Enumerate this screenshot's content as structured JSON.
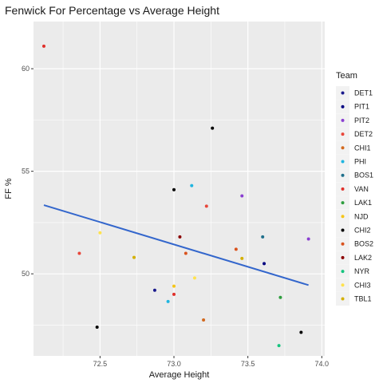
{
  "chart_data": {
    "type": "scatter",
    "title": "Fenwick For Percentage vs Average Height",
    "xlabel": "Average Height",
    "ylabel": "FF %",
    "xlim": [
      72.05,
      74.02
    ],
    "ylim": [
      46.0,
      62.3
    ],
    "x_ticks": [
      72.5,
      73.0,
      73.5,
      74.0
    ],
    "x_tick_labels": [
      "72.5",
      "73.0",
      "73.5",
      "74.0"
    ],
    "y_ticks": [
      50,
      55,
      60
    ],
    "y_tick_labels": [
      "50",
      "55",
      "60"
    ],
    "grid": true,
    "legend": {
      "title": "Team",
      "position": "right",
      "entries": [
        {
          "name": "DET1",
          "color": "#1a1a8c"
        },
        {
          "name": "PIT1",
          "color": "#000080"
        },
        {
          "name": "PIT2",
          "color": "#8a3fd1"
        },
        {
          "name": "DET2",
          "color": "#e8463a"
        },
        {
          "name": "CHI1",
          "color": "#d2691e"
        },
        {
          "name": "PHI",
          "color": "#1fb5e0"
        },
        {
          "name": "BOS1",
          "color": "#1f6f8b"
        },
        {
          "name": "VAN",
          "color": "#e0302a"
        },
        {
          "name": "LAK1",
          "color": "#2e9e3e"
        },
        {
          "name": "NJD",
          "color": "#f5c518"
        },
        {
          "name": "CHI2",
          "color": "#000000"
        },
        {
          "name": "BOS2",
          "color": "#d9531e"
        },
        {
          "name": "LAK2",
          "color": "#8b0000"
        },
        {
          "name": "NYR",
          "color": "#16c47f"
        },
        {
          "name": "CHI3",
          "color": "#ffe24d"
        },
        {
          "name": "TBL1",
          "color": "#d4b000"
        }
      ]
    },
    "points": [
      {
        "x": 72.12,
        "y": 61.1,
        "team": "VAN",
        "color": "#e0302a"
      },
      {
        "x": 73.26,
        "y": 57.1,
        "team": "CHI2",
        "color": "#000000"
      },
      {
        "x": 73.0,
        "y": 54.1,
        "team": "CHI2",
        "color": "#000000"
      },
      {
        "x": 73.12,
        "y": 54.3,
        "team": "PHI",
        "color": "#1fb5e0"
      },
      {
        "x": 73.46,
        "y": 53.8,
        "team": "PIT2",
        "color": "#8a3fd1"
      },
      {
        "x": 73.22,
        "y": 53.3,
        "team": "DET2",
        "color": "#e8463a"
      },
      {
        "x": 72.5,
        "y": 52.0,
        "team": "CHI3",
        "color": "#ffe24d"
      },
      {
        "x": 73.04,
        "y": 51.8,
        "team": "LAK2",
        "color": "#8b0000"
      },
      {
        "x": 73.6,
        "y": 51.8,
        "team": "BOS1",
        "color": "#1f6f8b"
      },
      {
        "x": 73.91,
        "y": 51.7,
        "team": "PIT2",
        "color": "#8a3fd1"
      },
      {
        "x": 73.42,
        "y": 51.2,
        "team": "BOS2",
        "color": "#d9531e"
      },
      {
        "x": 72.36,
        "y": 51.0,
        "team": "DET2",
        "color": "#e8463a"
      },
      {
        "x": 73.08,
        "y": 51.0,
        "team": "BOS2",
        "color": "#d9531e"
      },
      {
        "x": 72.73,
        "y": 50.8,
        "team": "TBL1",
        "color": "#d4b000"
      },
      {
        "x": 73.46,
        "y": 50.75,
        "team": "TBL1",
        "color": "#d4b000"
      },
      {
        "x": 73.61,
        "y": 50.5,
        "team": "PIT1",
        "color": "#000080"
      },
      {
        "x": 73.14,
        "y": 49.8,
        "team": "CHI3",
        "color": "#ffe24d"
      },
      {
        "x": 73.0,
        "y": 49.4,
        "team": "NJD",
        "color": "#f5c518"
      },
      {
        "x": 72.87,
        "y": 49.2,
        "team": "DET1",
        "color": "#1a1a8c"
      },
      {
        "x": 73.0,
        "y": 49.0,
        "team": "VAN",
        "color": "#e0302a"
      },
      {
        "x": 73.72,
        "y": 48.85,
        "team": "LAK1",
        "color": "#2e9e3e"
      },
      {
        "x": 72.96,
        "y": 48.65,
        "team": "PHI",
        "color": "#1fb5e0"
      },
      {
        "x": 73.2,
        "y": 47.75,
        "team": "CHI1",
        "color": "#d2691e"
      },
      {
        "x": 72.48,
        "y": 47.4,
        "team": "CHI2",
        "color": "#000000"
      },
      {
        "x": 73.86,
        "y": 47.15,
        "team": "CHI2",
        "color": "#000000"
      },
      {
        "x": 73.71,
        "y": 46.5,
        "team": "NYR",
        "color": "#16c47f"
      }
    ],
    "trend_line": {
      "color": "#3366cc",
      "x": [
        72.12,
        73.91
      ],
      "y": [
        53.35,
        49.45
      ]
    },
    "colors": {
      "panel_background": "#ebebeb",
      "grid_color": "#ffffff",
      "legend_key_background": "#f2f2f2"
    }
  }
}
